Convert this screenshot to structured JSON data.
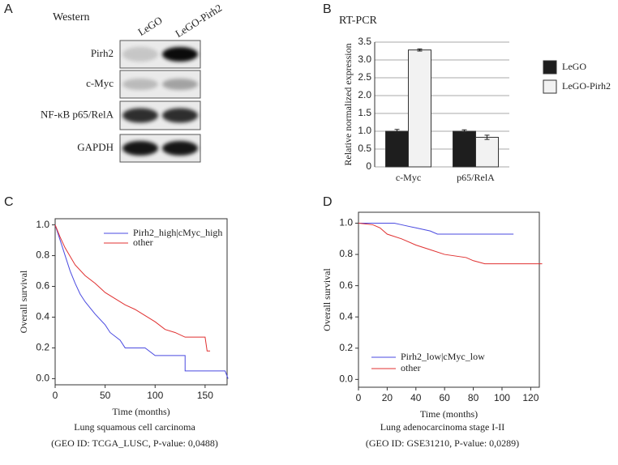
{
  "panels": [
    "A",
    "B",
    "C",
    "D"
  ],
  "western": {
    "title": "Western",
    "lanes": [
      "LeGO",
      "LeGO-Pirh2"
    ],
    "rows": [
      "Pirh2",
      "c-Myc",
      "NF-κB p65/RelA",
      "GAPDH"
    ]
  },
  "chart_data": [
    {
      "type": "bar",
      "title": "RT-PCR",
      "y_label": "Relative normalized expression",
      "categories": [
        "c-Myc",
        "p65/RelA"
      ],
      "series": [
        {
          "name": "LeGO",
          "color": "#1e1e1e",
          "values": [
            1.0,
            1.0
          ],
          "errors": [
            0.05,
            0.04
          ]
        },
        {
          "name": "LeGO-Pirh2",
          "color": "#f2f2f2",
          "values": [
            3.28,
            0.83
          ],
          "errors": [
            0.03,
            0.06
          ]
        }
      ],
      "ylim": [
        0,
        3.5
      ],
      "yticks": [
        0,
        0.5,
        {
          "value": 1,
          "label": "1.0"
        },
        1.5,
        {
          "value": 2,
          "label": "2.0"
        },
        2.5,
        {
          "value": 3,
          "label": "3.0"
        },
        3.5
      ],
      "grid": true,
      "legend": "right"
    },
    {
      "type": "line",
      "x_label": "Time (months)",
      "y_label": "Overall survival",
      "caption": [
        "Lung squamous cell carcinoma",
        "(GEO ID: TCGA_LUSC, P-value: 0,0488)"
      ],
      "series": [
        {
          "name": "Pirh2_high|cMyc_high",
          "color": "#4a4ae0",
          "x": [
            0,
            5,
            10,
            15,
            20,
            25,
            30,
            40,
            50,
            55,
            65,
            70,
            90,
            100,
            130,
            130,
            170,
            173
          ],
          "values": [
            1.0,
            0.9,
            0.8,
            0.7,
            0.62,
            0.55,
            0.5,
            0.42,
            0.35,
            0.3,
            0.25,
            0.2,
            0.2,
            0.15,
            0.15,
            0.05,
            0.05,
            0.0
          ]
        },
        {
          "name": "other",
          "color": "#e03030",
          "x": [
            0,
            5,
            10,
            20,
            30,
            40,
            50,
            60,
            70,
            80,
            90,
            100,
            110,
            120,
            130,
            150,
            152,
            155
          ],
          "values": [
            1.0,
            0.92,
            0.85,
            0.74,
            0.67,
            0.62,
            0.56,
            0.52,
            0.48,
            0.45,
            0.41,
            0.37,
            0.32,
            0.3,
            0.27,
            0.27,
            0.18,
            0.18
          ]
        }
      ],
      "xlim": [
        0,
        172
      ],
      "xticks": [
        0,
        50,
        100,
        150
      ],
      "ylim": [
        -0.04,
        1.04
      ],
      "yticks": [
        {
          "value": 0,
          "label": "0.0"
        },
        0.2,
        0.4,
        0.6,
        0.8,
        {
          "value": 1,
          "label": "1.0"
        }
      ],
      "legend": "upper right"
    },
    {
      "type": "line",
      "x_label": "Time (months)",
      "y_label": "Overall survival",
      "caption": [
        "Lung adenocarcinoma stage I-II",
        "(GEO ID: GSE31210, P-value: 0,0289)"
      ],
      "series": [
        {
          "name": "Pirh2_low|cMyc_low",
          "color": "#4a4ae0",
          "x": [
            0,
            25,
            30,
            40,
            50,
            55,
            108
          ],
          "values": [
            1.0,
            1.0,
            0.99,
            0.97,
            0.95,
            0.93,
            0.93
          ]
        },
        {
          "name": "other",
          "color": "#e03030",
          "x": [
            0,
            10,
            15,
            20,
            30,
            40,
            50,
            60,
            75,
            80,
            88,
            128
          ],
          "values": [
            1.0,
            0.99,
            0.97,
            0.93,
            0.9,
            0.86,
            0.83,
            0.8,
            0.78,
            0.76,
            0.74,
            0.74
          ]
        }
      ],
      "xlim": [
        0,
        126
      ],
      "xticks": [
        0,
        20,
        40,
        60,
        80,
        100,
        120
      ],
      "ylim": [
        -0.05,
        1.07
      ],
      "yticks": [
        {
          "value": 0,
          "label": "0.0"
        },
        0.2,
        0.4,
        0.6,
        0.8,
        {
          "value": 1,
          "label": "1.0"
        }
      ],
      "legend": "lower left"
    }
  ]
}
